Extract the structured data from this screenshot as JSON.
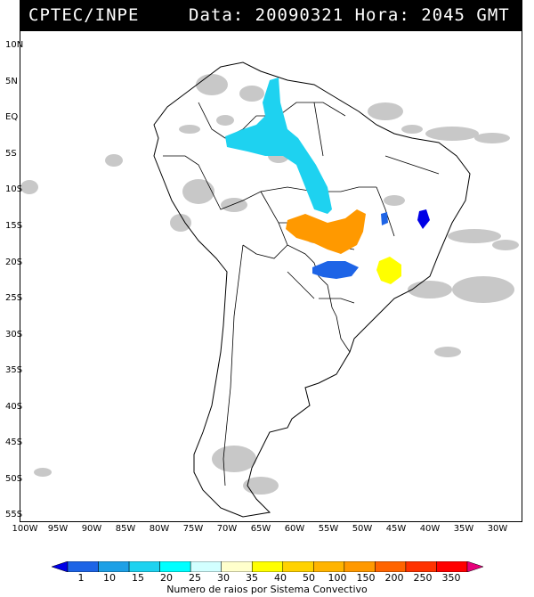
{
  "header": {
    "source": "CPTEC/INPE",
    "stamp": "Data: 20090321 Hora: 2045 GMT"
  },
  "map": {
    "lat_labels": [
      "10N",
      "5N",
      "EQ",
      "5S",
      "10S",
      "15S",
      "20S",
      "25S",
      "30S",
      "35S",
      "40S",
      "45S",
      "50S",
      "55S"
    ],
    "lon_labels": [
      "100W",
      "95W",
      "90W",
      "85W",
      "80W",
      "75W",
      "70W",
      "65W",
      "60W",
      "55W",
      "50W",
      "45W",
      "40W",
      "35W",
      "30W"
    ],
    "lat_range": [
      -56,
      13
    ],
    "lon_range": [
      -100,
      -27
    ],
    "cell_colors": {
      "cyan": "#1ed2f0",
      "blue": "#1e64e6",
      "darkblue": "#0000e6",
      "orange": "#ff9900",
      "yellow": "#ffff00",
      "cloud": "#c8c8c8"
    }
  },
  "legend": {
    "labels": [
      "1",
      "10",
      "15",
      "20",
      "25",
      "30",
      "35",
      "40",
      "50",
      "100",
      "150",
      "200",
      "250",
      "350"
    ],
    "colors": [
      "#0000e6",
      "#1e64e6",
      "#1ea0e6",
      "#1ed2f0",
      "#00ffff",
      "#d2ffff",
      "#ffffcc",
      "#ffff00",
      "#ffd200",
      "#ffb400",
      "#ff9900",
      "#ff6400",
      "#ff3200",
      "#ff0000",
      "#e6007a"
    ],
    "title": "Numero de raios por Sistema Convectivo"
  }
}
